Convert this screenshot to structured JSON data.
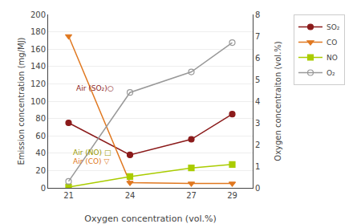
{
  "chart_data": {
    "type": "line",
    "x": [
      21,
      24,
      27,
      29
    ],
    "xlabel": "Oxygen concentration (vol.%)",
    "ylabel": "Emission concentration (mg/MJ)",
    "y2label": "Oxygen concentraiton (vol.%)",
    "xlim": [
      20,
      30
    ],
    "xticks": [
      21,
      24,
      27,
      29
    ],
    "ylim": [
      0,
      200
    ],
    "yticks": [
      0,
      20,
      40,
      60,
      80,
      100,
      120,
      140,
      160,
      180,
      200
    ],
    "y2lim": [
      0,
      8
    ],
    "y2ticks": [
      0,
      1,
      2,
      3,
      4,
      5,
      6,
      7,
      8
    ],
    "grid": true,
    "legend": "upper right",
    "series": [
      {
        "name": "SO₂",
        "color": "#8B1A1A",
        "marker": "circle",
        "values": [
          75,
          38,
          56,
          85
        ]
      },
      {
        "name": "CO",
        "color": "#E07820",
        "marker": "triangle-down",
        "values": [
          175,
          6,
          5,
          5
        ]
      },
      {
        "name": "NO",
        "color": "#AACC00",
        "marker": "square",
        "values": [
          1,
          13,
          23,
          27
        ]
      },
      {
        "name": "O₂",
        "color": "#999999",
        "marker": "circle-open",
        "axis": "y2",
        "values": [
          0.3,
          4.4,
          5.35,
          6.7
        ]
      }
    ],
    "annotations": [
      {
        "text": "Air (SO₂)○",
        "x": 21.3,
        "y": 108,
        "color": "#8B1A1A"
      },
      {
        "text": "Air (NO) □",
        "x": 21.15,
        "y": 34,
        "color": "#999900"
      },
      {
        "text": "Air (CO) ▽",
        "x": 21.15,
        "y": 24,
        "color": "#E07820"
      }
    ]
  }
}
